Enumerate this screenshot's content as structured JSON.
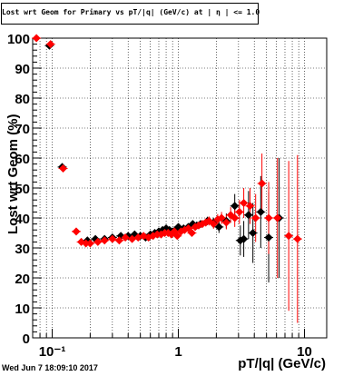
{
  "chart_data": {
    "type": "scatter",
    "title": "Lost wrt Geom for Primary vs pT/|q| (GeV/c) at | η | <= 1.0",
    "xlabel": "pT/|q| (GeV/c)",
    "ylabel": "Lost wrt Geom (%)",
    "x_scale": "log",
    "xlim": [
      0.07,
      15
    ],
    "ylim": [
      0,
      100
    ],
    "x_ticks": [
      {
        "value": 0.1,
        "label": "10⁻¹"
      },
      {
        "value": 1,
        "label": "1"
      },
      {
        "value": 10,
        "label": "10"
      }
    ],
    "y_ticks": [
      0,
      10,
      20,
      30,
      40,
      50,
      60,
      70,
      80,
      90,
      100
    ],
    "grid": true,
    "series": [
      {
        "color": "#000000",
        "x": [
          0.095,
          0.12,
          0.19,
          0.22,
          0.26,
          0.3,
          0.35,
          0.4,
          0.45,
          0.5,
          0.55,
          0.6,
          0.65,
          0.7,
          0.75,
          0.8,
          0.85,
          0.9,
          0.95,
          1.0,
          1.1,
          1.2,
          1.3,
          1.4,
          1.5,
          1.7,
          1.9,
          2.1,
          2.4,
          2.8,
          3.1,
          3.3,
          3.6,
          3.9,
          4.5,
          5.2,
          6.3
        ],
        "y": [
          97.5,
          57,
          32.5,
          33,
          33,
          33.5,
          34,
          34,
          34.5,
          34,
          33.5,
          34.5,
          35,
          35.5,
          36,
          36.5,
          36,
          35.5,
          36,
          37,
          36.5,
          37,
          38,
          37.5,
          38,
          39,
          38.5,
          37,
          39,
          44,
          32.5,
          33,
          41,
          35,
          42,
          33.5,
          40
        ],
        "err": [
          1,
          1,
          0.5,
          0.5,
          0.5,
          0.5,
          0.5,
          0.5,
          0.5,
          0.5,
          0.5,
          0.5,
          0.5,
          0.5,
          0.6,
          0.6,
          0.6,
          0.7,
          0.7,
          0.8,
          0.8,
          0.9,
          1,
          1,
          1.2,
          1.4,
          1.6,
          2,
          2.5,
          4,
          5,
          6,
          8,
          10,
          12,
          15,
          20
        ]
      },
      {
        "color": "#ff0000",
        "x": [
          0.075,
          0.097,
          0.122,
          0.155,
          0.17,
          0.185,
          0.2,
          0.23,
          0.26,
          0.3,
          0.34,
          0.38,
          0.43,
          0.48,
          0.53,
          0.58,
          0.63,
          0.68,
          0.73,
          0.78,
          0.83,
          0.88,
          0.93,
          0.98,
          1.05,
          1.12,
          1.2,
          1.28,
          1.36,
          1.45,
          1.55,
          1.65,
          1.75,
          1.9,
          2.05,
          2.2,
          2.4,
          2.6,
          2.8,
          3.05,
          3.3,
          3.7,
          4.1,
          4.6,
          5.2,
          6.1,
          7.5,
          8.8
        ],
        "y": [
          100,
          98,
          56.5,
          35.5,
          32,
          31.5,
          31.5,
          32,
          32.5,
          33,
          32.5,
          33.5,
          33,
          33.5,
          34,
          33.5,
          34,
          34.5,
          34.5,
          35,
          35,
          34.5,
          35.5,
          34,
          35.5,
          36,
          36.5,
          35,
          37,
          37.5,
          38,
          38.5,
          39,
          38,
          39.5,
          40,
          38.5,
          41,
          40,
          42,
          45,
          44,
          40,
          51.5,
          40,
          40,
          34,
          33
        ],
        "err": [
          1,
          1,
          1,
          1,
          0.6,
          0.5,
          0.5,
          0.5,
          0.5,
          0.5,
          0.5,
          0.5,
          0.5,
          0.5,
          0.5,
          0.5,
          0.5,
          0.6,
          0.6,
          0.6,
          0.6,
          0.7,
          0.7,
          0.7,
          0.8,
          0.8,
          0.9,
          1,
          1,
          1.1,
          1.2,
          1.3,
          1.5,
          1.6,
          1.8,
          2,
          2.3,
          2.6,
          3,
          4,
          5,
          6,
          8,
          10,
          12,
          20,
          25,
          28
        ]
      }
    ]
  },
  "timestamp": "Wed Jun  7 18:09:10 2017"
}
